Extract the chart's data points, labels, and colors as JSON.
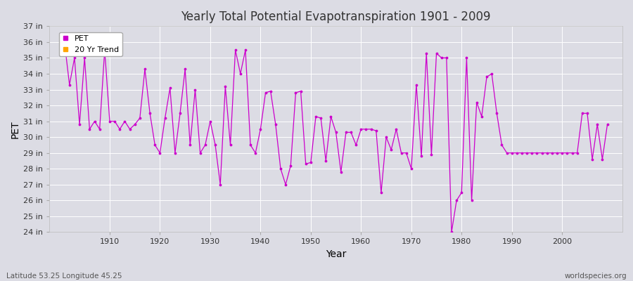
{
  "title": "Yearly Total Potential Evapotranspiration 1901 - 2009",
  "xlabel": "Year",
  "ylabel": "PET",
  "footer_left": "Latitude 53.25 Longitude 45.25",
  "footer_right": "worldspecies.org",
  "bg_color": "#dcdce4",
  "plot_bg_color": "#dcdce4",
  "line_color": "#cc00cc",
  "trend_color": "#ffa500",
  "ylim": [
    24,
    37
  ],
  "ytick_labels": [
    "24 in",
    "25 in",
    "26 in",
    "27 in",
    "28 in",
    "29 in",
    "30 in",
    "31 in",
    "32 in",
    "33 in",
    "34 in",
    "35 in",
    "36 in",
    "37 in"
  ],
  "ytick_values": [
    24,
    25,
    26,
    27,
    28,
    29,
    30,
    31,
    32,
    33,
    34,
    35,
    36,
    37
  ],
  "xtick_values": [
    1910,
    1920,
    1930,
    1940,
    1950,
    1960,
    1970,
    1980,
    1990,
    2000
  ],
  "xlim": [
    1898,
    2012
  ],
  "years": [
    1901,
    1902,
    1903,
    1904,
    1905,
    1906,
    1907,
    1908,
    1909,
    1910,
    1911,
    1912,
    1913,
    1914,
    1915,
    1916,
    1917,
    1918,
    1919,
    1920,
    1921,
    1922,
    1923,
    1924,
    1925,
    1926,
    1927,
    1928,
    1929,
    1930,
    1931,
    1932,
    1933,
    1934,
    1935,
    1936,
    1937,
    1938,
    1939,
    1940,
    1941,
    1942,
    1943,
    1944,
    1945,
    1946,
    1947,
    1948,
    1949,
    1950,
    1951,
    1952,
    1953,
    1954,
    1955,
    1956,
    1957,
    1958,
    1959,
    1960,
    1961,
    1962,
    1963,
    1964,
    1965,
    1966,
    1967,
    1968,
    1969,
    1970,
    1971,
    1972,
    1973,
    1974,
    1975,
    1976,
    1977,
    1978,
    1979,
    1980,
    1981,
    1982,
    1983,
    1984,
    1985,
    1986,
    1987,
    1988,
    1989,
    1990,
    1991,
    1992,
    1993,
    1994,
    1995,
    1996,
    1997,
    1998,
    1999,
    2000,
    2001,
    2002,
    2003,
    2004,
    2005,
    2006,
    2007,
    2008,
    2009
  ],
  "pet_values": [
    36.0,
    33.3,
    35.0,
    30.8,
    35.0,
    30.5,
    31.0,
    30.5,
    35.5,
    31.0,
    31.0,
    30.5,
    31.0,
    30.5,
    30.8,
    31.2,
    34.3,
    31.5,
    29.5,
    29.0,
    31.2,
    33.1,
    29.0,
    31.5,
    34.3,
    29.5,
    33.0,
    29.0,
    29.5,
    31.0,
    29.5,
    27.0,
    33.2,
    29.5,
    35.5,
    34.0,
    35.5,
    29.5,
    29.0,
    30.5,
    32.8,
    32.9,
    30.8,
    28.0,
    27.0,
    28.2,
    32.8,
    32.9,
    28.3,
    28.4,
    31.3,
    31.2,
    28.5,
    31.3,
    30.3,
    27.8,
    30.3,
    30.3,
    29.5,
    30.5,
    30.5,
    30.5,
    30.4,
    26.5,
    30.0,
    29.2,
    30.5,
    29.0,
    29.0,
    28.0,
    33.3,
    28.8,
    35.3,
    28.9,
    35.3,
    35.0,
    35.0,
    24.0,
    26.0,
    26.5,
    35.0,
    26.0,
    32.2,
    31.3,
    33.8,
    34.0,
    31.5,
    29.5,
    29.0,
    29.0,
    29.0,
    29.0,
    29.0,
    29.0,
    29.0,
    29.0,
    29.0,
    29.0,
    29.0,
    29.0,
    29.0,
    29.0,
    29.0,
    31.5,
    31.5,
    28.6,
    30.8,
    28.6,
    30.8
  ]
}
